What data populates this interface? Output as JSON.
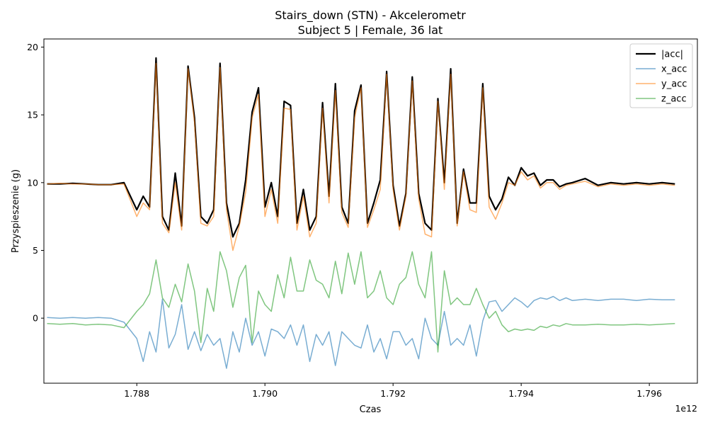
{
  "chart_data": {
    "type": "line",
    "title": "Stairs_down (STN) - Akcelerometr",
    "subtitle": "Subject 5 | Female, 36 lat",
    "xlabel": "Czas",
    "ylabel": "Przyspieszenie (g)",
    "x_offset_label": "1e12",
    "xlim": [
      1.78655,
      1.79675
    ],
    "ylim": [
      -4.8,
      20.6
    ],
    "xticks": [
      1.788,
      1.79,
      1.792,
      1.794,
      1.796
    ],
    "xtick_labels": [
      "1.788",
      "1.790",
      "1.792",
      "1.794",
      "1.796"
    ],
    "yticks": [
      0,
      5,
      10,
      15,
      20
    ],
    "ytick_labels": [
      "0",
      "5",
      "10",
      "15",
      "20"
    ],
    "grid": false,
    "legend_position": "upper right",
    "x": [
      1.7866,
      1.7868,
      1.787,
      1.7872,
      1.7874,
      1.7876,
      1.7878,
      1.788,
      1.788,
      1.7881,
      1.7882,
      1.7883,
      1.7884,
      1.7885,
      1.7886,
      1.7887,
      1.7888,
      1.7889,
      1.789,
      1.7891,
      1.7892,
      1.7893,
      1.7894,
      1.7895,
      1.7896,
      1.7897,
      1.7898,
      1.7899,
      1.79,
      1.7901,
      1.7902,
      1.7903,
      1.7904,
      1.7905,
      1.7906,
      1.7907,
      1.7908,
      1.7909,
      1.791,
      1.7911,
      1.7912,
      1.7913,
      1.7914,
      1.7915,
      1.7916,
      1.7917,
      1.7918,
      1.7919,
      1.792,
      1.7921,
      1.7922,
      1.7923,
      1.7924,
      1.7925,
      1.7926,
      1.7927,
      1.7928,
      1.7929,
      1.793,
      1.7931,
      1.7932,
      1.7933,
      1.7934,
      1.7935,
      1.7936,
      1.7937,
      1.7938,
      1.7939,
      1.794,
      1.7941,
      1.7942,
      1.7943,
      1.7944,
      1.7945,
      1.7946,
      1.7947,
      1.7948,
      1.795,
      1.7952,
      1.7954,
      1.7956,
      1.7958,
      1.796,
      1.7962,
      1.7964
    ],
    "series": [
      {
        "name": "|acc|",
        "color": "#000000",
        "values": [
          9.9,
          9.9,
          9.95,
          9.9,
          9.85,
          9.85,
          10.0,
          8.0,
          8.0,
          9.0,
          8.2,
          19.2,
          7.5,
          6.5,
          10.7,
          6.8,
          18.6,
          14.8,
          7.5,
          7.0,
          8.0,
          18.8,
          8.5,
          6.0,
          7.0,
          10.2,
          15.2,
          17.0,
          8.2,
          10.0,
          7.5,
          16.0,
          15.7,
          7.0,
          9.5,
          6.5,
          7.5,
          15.9,
          9.0,
          17.3,
          8.2,
          7.0,
          15.3,
          17.2,
          7.0,
          8.5,
          10.2,
          18.2,
          9.8,
          6.8,
          9.2,
          17.8,
          9.2,
          7.0,
          6.5,
          16.2,
          10.0,
          18.4,
          7.0,
          11.0,
          8.5,
          8.5,
          17.3,
          9.0,
          8.0,
          8.8,
          10.4,
          9.8,
          11.1,
          10.5,
          10.7,
          9.8,
          10.2,
          10.2,
          9.7,
          9.9,
          10.0,
          10.3,
          9.8,
          10.0,
          9.9,
          10.0,
          9.9,
          10.0,
          9.9
        ]
      },
      {
        "name": "x_acc",
        "color": "#1f77b4",
        "values": [
          0.05,
          0.0,
          0.05,
          0.0,
          0.05,
          0.0,
          -0.3,
          -1.5,
          -1.5,
          -3.2,
          -1.0,
          -2.5,
          1.4,
          -2.2,
          -1.2,
          1.0,
          -2.3,
          -1.0,
          -2.4,
          -1.2,
          -2.0,
          -1.5,
          -3.7,
          -1.0,
          -2.5,
          0.0,
          -2.0,
          -1.0,
          -2.8,
          -0.8,
          -1.0,
          -1.5,
          -0.5,
          -2.0,
          -0.5,
          -3.2,
          -1.2,
          -2.0,
          -1.0,
          -3.5,
          -1.0,
          -1.5,
          -2.0,
          -2.2,
          -0.5,
          -2.5,
          -1.5,
          -3.0,
          -1.0,
          -1.0,
          -2.0,
          -1.5,
          -3.0,
          0.0,
          -1.5,
          -2.0,
          0.5,
          -2.0,
          -1.5,
          -2.0,
          -0.5,
          -2.8,
          -0.2,
          1.2,
          1.3,
          0.5,
          1.0,
          1.5,
          1.2,
          0.8,
          1.3,
          1.5,
          1.4,
          1.6,
          1.3,
          1.5,
          1.3,
          1.4,
          1.3,
          1.4,
          1.4,
          1.3,
          1.4,
          1.35,
          1.35
        ]
      },
      {
        "name": "y_acc",
        "color": "#ff7f0e",
        "values": [
          9.9,
          9.95,
          9.9,
          9.9,
          9.85,
          9.85,
          9.9,
          7.5,
          7.5,
          8.5,
          8.0,
          18.8,
          7.0,
          6.3,
          10.0,
          6.5,
          18.4,
          14.5,
          7.0,
          6.8,
          7.5,
          18.5,
          8.0,
          5.0,
          6.8,
          9.3,
          14.8,
          16.5,
          7.5,
          9.5,
          7.0,
          15.5,
          15.4,
          6.5,
          9.0,
          6.0,
          7.0,
          15.5,
          8.5,
          16.8,
          7.8,
          6.7,
          14.8,
          17.0,
          6.7,
          8.0,
          9.5,
          18.0,
          9.5,
          6.5,
          9.0,
          17.5,
          8.8,
          6.2,
          6.0,
          16.0,
          9.5,
          18.0,
          6.8,
          10.8,
          8.0,
          7.8,
          17.0,
          8.2,
          7.3,
          8.5,
          10.0,
          9.8,
          10.8,
          10.2,
          10.5,
          9.6,
          10.0,
          10.0,
          9.5,
          9.8,
          9.9,
          10.1,
          9.7,
          9.9,
          9.8,
          9.9,
          9.8,
          9.9,
          9.8
        ]
      },
      {
        "name": "z_acc",
        "color": "#2ca02c",
        "values": [
          -0.4,
          -0.45,
          -0.4,
          -0.5,
          -0.45,
          -0.5,
          -0.7,
          0.5,
          0.5,
          1.0,
          1.8,
          4.3,
          1.5,
          0.8,
          2.5,
          1.2,
          4.0,
          2.0,
          -1.8,
          2.2,
          0.5,
          4.9,
          3.5,
          0.8,
          3.0,
          3.9,
          -1.8,
          2.0,
          1.0,
          0.5,
          3.2,
          1.5,
          4.5,
          2.0,
          2.0,
          4.3,
          2.8,
          2.5,
          1.5,
          4.2,
          1.8,
          4.8,
          2.5,
          4.9,
          1.5,
          2.0,
          3.5,
          1.5,
          1.0,
          2.5,
          3.0,
          4.9,
          2.5,
          1.5,
          4.9,
          -2.5,
          3.5,
          1.0,
          1.5,
          1.0,
          1.0,
          2.2,
          1.0,
          0.0,
          0.5,
          -0.5,
          -1.0,
          -0.8,
          -0.9,
          -0.8,
          -0.9,
          -0.6,
          -0.7,
          -0.5,
          -0.6,
          -0.4,
          -0.5,
          -0.5,
          -0.45,
          -0.5,
          -0.5,
          -0.45,
          -0.5,
          -0.45,
          -0.4
        ]
      }
    ]
  }
}
